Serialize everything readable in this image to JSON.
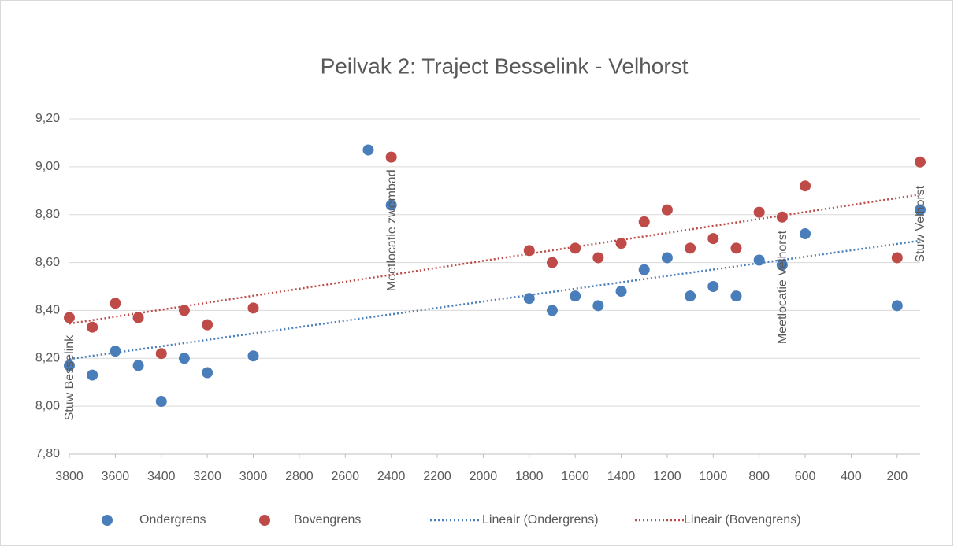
{
  "chart_data": {
    "type": "scatter",
    "title": "Peilvak 2: Traject Besselink - Velhorst",
    "xlim": [
      3800,
      100
    ],
    "xticks": [
      3800,
      3600,
      3400,
      3200,
      3000,
      2800,
      2600,
      2400,
      2200,
      2000,
      1800,
      1600,
      1400,
      1200,
      1000,
      800,
      600,
      400,
      200
    ],
    "ylim": [
      7.8,
      9.2
    ],
    "yticks": [
      {
        "value": 7.8,
        "label": "7,80"
      },
      {
        "value": 8.0,
        "label": "8,00"
      },
      {
        "value": 8.2,
        "label": "8,20"
      },
      {
        "value": 8.4,
        "label": "8,40"
      },
      {
        "value": 8.6,
        "label": "8,60"
      },
      {
        "value": 8.8,
        "label": "8,80"
      },
      {
        "value": 9.0,
        "label": "9,00"
      },
      {
        "value": 9.2,
        "label": "9,20"
      }
    ],
    "grid": true,
    "legend": "bottom",
    "series": [
      {
        "name": "Ondergrens",
        "color": "#4a7ebb",
        "trendline": "Lineair (Ondergrens)",
        "x": [
          3800,
          3700,
          3600,
          3500,
          3400,
          3300,
          3200,
          3000,
          2500,
          2400,
          1800,
          1700,
          1600,
          1500,
          1400,
          1300,
          1200,
          1100,
          1000,
          900,
          800,
          700,
          600,
          200,
          100
        ],
        "values": [
          8.17,
          8.13,
          8.23,
          8.17,
          8.02,
          8.2,
          8.14,
          8.21,
          9.07,
          8.84,
          8.45,
          8.4,
          8.46,
          8.42,
          8.48,
          8.57,
          8.62,
          8.46,
          8.5,
          8.46,
          8.61,
          8.59,
          8.72,
          8.42,
          8.82
        ]
      },
      {
        "name": "Bovengrens",
        "color": "#be4b48",
        "trendline": "Lineair (Bovengrens)",
        "x": [
          3800,
          3700,
          3600,
          3500,
          3400,
          3300,
          3200,
          3000,
          2400,
          1800,
          1700,
          1600,
          1500,
          1400,
          1300,
          1200,
          1100,
          1000,
          900,
          800,
          700,
          600,
          200,
          100
        ],
        "values": [
          8.37,
          8.33,
          8.43,
          8.37,
          8.22,
          8.4,
          8.34,
          8.41,
          9.04,
          8.65,
          8.6,
          8.66,
          8.62,
          8.68,
          8.77,
          8.82,
          8.66,
          8.7,
          8.66,
          8.81,
          8.79,
          8.92,
          8.62,
          9.02
        ]
      }
    ],
    "annotations": [
      {
        "text": "Stuw Besselink",
        "x": 3800,
        "y": 7.94
      },
      {
        "text": "Meetlocatie zwembad",
        "x": 2400,
        "y": 8.48
      },
      {
        "text": "Meetlocatie Velhorst",
        "x": 700,
        "y": 8.26
      },
      {
        "text": "Stuw Velhorst",
        "x": 100,
        "y": 8.6
      }
    ]
  }
}
